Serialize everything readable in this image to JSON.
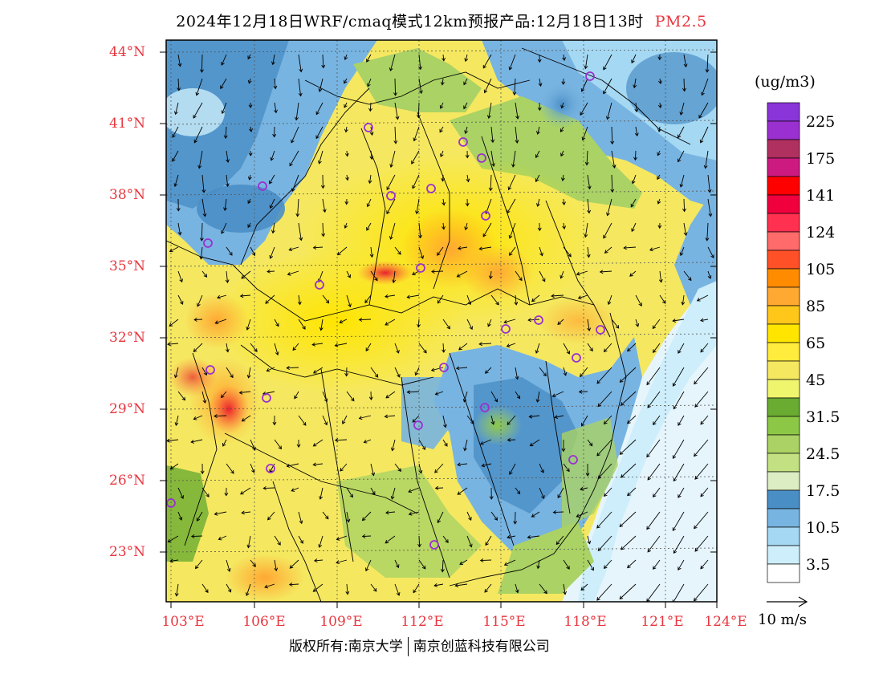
{
  "title": {
    "main": "2024年12月18日WRF/cmaq模式12km预报产品:12月18日13时",
    "variable": "PM2.5"
  },
  "map": {
    "lat_labels": [
      "44°N",
      "41°N",
      "38°N",
      "35°N",
      "32°N",
      "29°N",
      "26°N",
      "23°N"
    ],
    "lon_labels": [
      "103°E",
      "106°E",
      "109°E",
      "112°E",
      "115°E",
      "118°E",
      "121°E",
      "124°E"
    ],
    "label_color": "#e8363f",
    "ocean_color": "#e6f5fc",
    "boundary_color": "#000000",
    "city_marker_color": "#9b30d0",
    "city_marker_count": 24
  },
  "colorbar": {
    "unit": "(ug/m3)",
    "colors": [
      "#8a35d9",
      "#9b30d0",
      "#b03060",
      "#cd1a80",
      "#ff0000",
      "#f0003c",
      "#ff3050",
      "#ff6a6a",
      "#ff5028",
      "#ff8c00",
      "#ffa832",
      "#ffc71a",
      "#ffe500",
      "#ffec3c",
      "#f5e860",
      "#f0f56e",
      "#6aab32",
      "#8cc846",
      "#aad264",
      "#c3e182",
      "#dcedc3",
      "#4a8ec6",
      "#78b4e1",
      "#a5d8f2",
      "#cdeefa",
      "#ffffff"
    ],
    "labels": [
      "225",
      "175",
      "141",
      "124",
      "105",
      "85",
      "65",
      "45",
      "31.5",
      "24.5",
      "17.5",
      "10.5",
      "3.5"
    ]
  },
  "wind_legend": {
    "label": "10 m/s"
  },
  "copyright": {
    "left": "版权所有:南京大学",
    "right": "南京创蓝科技有限公司"
  }
}
